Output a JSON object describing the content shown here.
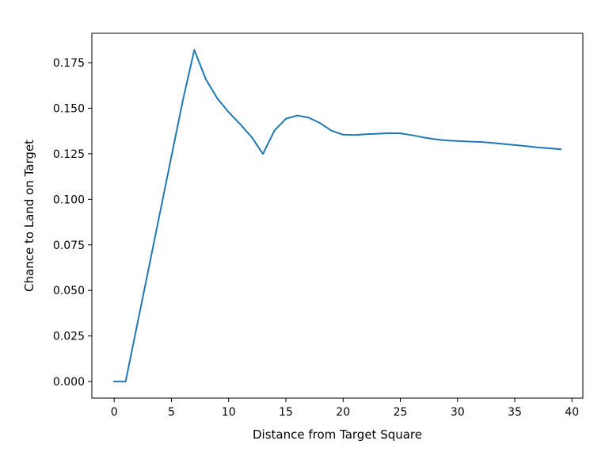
{
  "chart_data": {
    "type": "line",
    "title": "",
    "xlabel": "Distance from Target Square",
    "ylabel": "Chance to Land on Target",
    "xlim": [
      -1.95,
      40.95
    ],
    "ylim": [
      -0.0091,
      0.1911
    ],
    "xticks": [
      0,
      5,
      10,
      15,
      20,
      25,
      30,
      35,
      40
    ],
    "xtick_labels": [
      "0",
      "5",
      "10",
      "15",
      "20",
      "25",
      "30",
      "35",
      "40"
    ],
    "yticks": [
      0.0,
      0.025,
      0.05,
      0.075,
      0.1,
      0.125,
      0.15,
      0.175
    ],
    "ytick_labels": [
      "0.000",
      "0.025",
      "0.050",
      "0.075",
      "0.100",
      "0.125",
      "0.150",
      "0.175"
    ],
    "grid": false,
    "line_color": "#1f77b4",
    "series": [
      {
        "x": [
          0,
          1,
          2,
          3,
          4,
          5,
          6,
          7,
          8,
          9,
          10,
          11,
          12,
          13,
          14,
          15,
          16,
          17,
          18,
          19,
          20,
          21,
          22,
          23,
          24,
          25,
          26,
          27,
          28,
          29,
          30,
          31,
          32,
          33,
          34,
          35,
          36,
          37,
          38,
          39
        ],
        "values": [
          0.0,
          0.0,
          0.0309,
          0.0617,
          0.0926,
          0.1235,
          0.1543,
          0.182,
          0.166,
          0.1555,
          0.1478,
          0.1413,
          0.1342,
          0.1249,
          0.1377,
          0.1442,
          0.146,
          0.1448,
          0.1418,
          0.1376,
          0.1355,
          0.1353,
          0.1357,
          0.136,
          0.1363,
          0.1362,
          0.1352,
          0.134,
          0.133,
          0.1323,
          0.132,
          0.1317,
          0.1315,
          0.131,
          0.1304,
          0.1298,
          0.1292,
          0.1285,
          0.128,
          0.1275
        ]
      }
    ]
  }
}
